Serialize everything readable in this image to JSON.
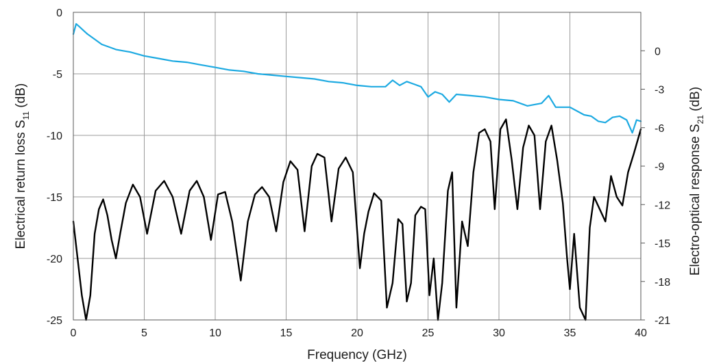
{
  "chart_data": {
    "type": "line",
    "xlabel": "Frequency (GHz)",
    "ylabel_left": {
      "main": "Electrical return loss S",
      "sub": "11",
      "unit": " (dB)"
    },
    "ylabel_right": {
      "main": "Electro-optical response S",
      "sub": "21",
      "unit": " (dB)"
    },
    "xlim": [
      0,
      40
    ],
    "ylim_left": [
      -25,
      0
    ],
    "ylim_right": [
      -21,
      3
    ],
    "x_ticks": [
      0,
      5,
      10,
      15,
      20,
      25,
      30,
      35,
      40
    ],
    "y_ticks_left": [
      0,
      -5,
      -10,
      -15,
      -20,
      -25
    ],
    "y_ticks_right": [
      0,
      -3,
      -6,
      -9,
      -12,
      -15,
      -18,
      -21
    ],
    "grid": true,
    "legend": "none",
    "series": [
      {
        "axis": "right",
        "color": "#1ba9e1",
        "x": [
          0,
          0.2,
          0.4,
          0.7,
          1,
          1.5,
          2,
          2.5,
          3,
          3.5,
          4,
          5,
          6,
          7,
          8,
          9,
          10,
          11,
          12,
          13,
          14,
          15,
          16,
          17,
          18,
          19,
          20,
          21,
          22,
          22.5,
          23,
          23.5,
          24,
          24.5,
          25,
          25.5,
          26,
          26.5,
          27,
          28,
          29,
          30,
          31,
          32,
          33,
          33.5,
          34,
          35,
          35.5,
          36,
          36.5,
          37,
          37.5,
          38,
          38.5,
          39,
          39.4,
          39.7,
          40
        ],
        "y": [
          1.3,
          2.1,
          1.9,
          1.6,
          1.3,
          0.9,
          0.5,
          0.3,
          0.1,
          0.0,
          -0.1,
          -0.4,
          -0.6,
          -0.8,
          -0.9,
          -1.1,
          -1.3,
          -1.5,
          -1.6,
          -1.8,
          -1.9,
          -2.0,
          -2.1,
          -2.2,
          -2.4,
          -2.5,
          -2.7,
          -2.8,
          -2.8,
          -2.3,
          -2.7,
          -2.4,
          -2.6,
          -2.8,
          -3.6,
          -3.2,
          -3.4,
          -4.0,
          -3.4,
          -3.5,
          -3.6,
          -3.8,
          -3.9,
          -4.3,
          -4.1,
          -3.5,
          -4.4,
          -4.4,
          -4.7,
          -5.0,
          -5.1,
          -5.5,
          -5.6,
          -5.2,
          -5.1,
          -5.4,
          -6.4,
          -5.4,
          -5.5
        ]
      },
      {
        "axis": "left",
        "color": "#000000",
        "x": [
          0,
          0.3,
          0.6,
          0.9,
          1.2,
          1.5,
          1.8,
          2.1,
          2.4,
          2.7,
          3.0,
          3.3,
          3.7,
          4.2,
          4.7,
          5.2,
          5.8,
          6.4,
          7.0,
          7.6,
          8.2,
          8.7,
          9.2,
          9.7,
          10.2,
          10.7,
          11.2,
          11.8,
          12.3,
          12.8,
          13.3,
          13.8,
          14.3,
          14.8,
          15.3,
          15.8,
          16.3,
          16.8,
          17.2,
          17.7,
          18.2,
          18.7,
          19.2,
          19.7,
          20.2,
          20.5,
          20.8,
          21.2,
          21.7,
          22.1,
          22.5,
          22.9,
          23.2,
          23.5,
          23.8,
          24.1,
          24.5,
          24.8,
          25.1,
          25.4,
          25.7,
          26.0,
          26.4,
          26.7,
          27.0,
          27.4,
          27.8,
          28.2,
          28.6,
          29.0,
          29.4,
          29.7,
          30.1,
          30.5,
          30.9,
          31.3,
          31.7,
          32.1,
          32.5,
          32.9,
          33.3,
          33.7,
          34.1,
          34.5,
          34.8,
          35.0,
          35.3,
          35.7,
          36.1,
          36.4,
          36.7,
          37.1,
          37.5,
          37.9,
          38.3,
          38.7,
          39.1,
          39.5,
          40.0
        ],
        "y": [
          -17,
          -20,
          -23,
          -25,
          -23,
          -18,
          -16,
          -15.2,
          -16.5,
          -18.5,
          -20,
          -18,
          -15.5,
          -14,
          -15,
          -18,
          -14.5,
          -13.7,
          -15,
          -18,
          -14.5,
          -13.7,
          -15,
          -18.5,
          -14.8,
          -14.6,
          -17,
          -21.8,
          -17,
          -14.8,
          -14.2,
          -15,
          -17.8,
          -13.8,
          -12.1,
          -12.8,
          -17.8,
          -12.5,
          -11.5,
          -11.8,
          -17,
          -12.7,
          -11.8,
          -13,
          -20.8,
          -18,
          -16.2,
          -14.7,
          -15.3,
          -24,
          -22,
          -16.8,
          -17.2,
          -23.5,
          -22,
          -16.5,
          -15.8,
          -16,
          -23,
          -20,
          -25,
          -22,
          -14.5,
          -13,
          -24,
          -17,
          -19,
          -13,
          -9.8,
          -9.5,
          -10.5,
          -16,
          -9.5,
          -8.7,
          -12,
          -16,
          -11,
          -9.2,
          -10,
          -16,
          -10.5,
          -9.2,
          -12,
          -15.5,
          -20,
          -22.5,
          -18,
          -24,
          -25,
          -17.5,
          -15,
          -16,
          -17,
          -13.3,
          -15,
          -15.7,
          -13,
          -11.5,
          -9.5
        ]
      }
    ]
  }
}
